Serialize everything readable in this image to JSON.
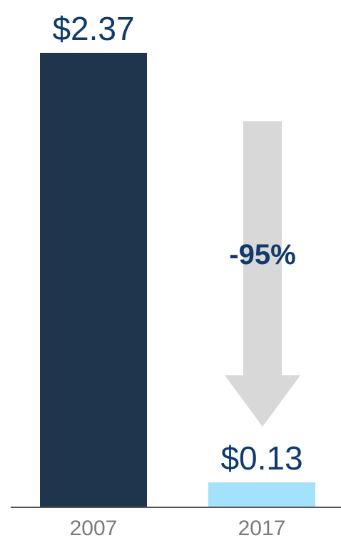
{
  "chart_data": {
    "type": "bar",
    "categories": [
      "2007",
      "2017"
    ],
    "values": [
      2.37,
      0.13
    ],
    "value_labels": [
      "$2.37",
      "$0.13"
    ],
    "ylim": [
      0,
      2.37
    ],
    "bar_colors": [
      "#1f344d",
      "#a4e1fb"
    ],
    "annotation": {
      "text": "-95%",
      "color": "#0f3a6b",
      "arrow_color": "#d8d8d8"
    },
    "axis_color": "#555555",
    "grid": false,
    "legend": "none"
  }
}
